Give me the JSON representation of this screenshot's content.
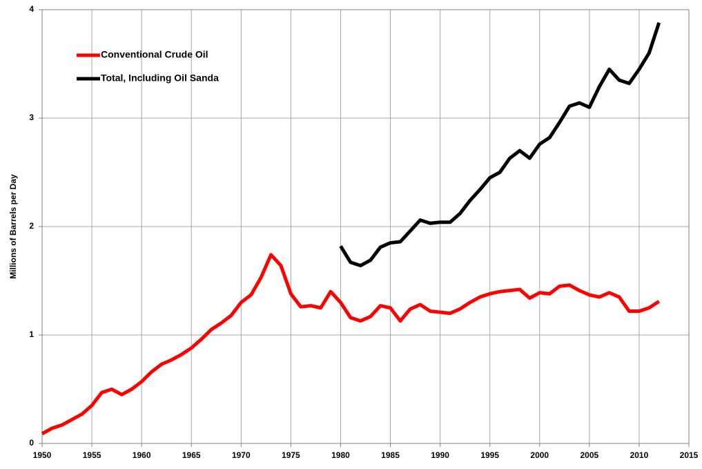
{
  "chart_data": {
    "type": "line",
    "y_label": "Millions of Barrels per Day",
    "x": [
      1950,
      1951,
      1952,
      1953,
      1954,
      1955,
      1956,
      1957,
      1958,
      1959,
      1960,
      1961,
      1962,
      1963,
      1964,
      1965,
      1966,
      1967,
      1968,
      1969,
      1970,
      1971,
      1972,
      1973,
      1974,
      1975,
      1976,
      1977,
      1978,
      1979,
      1980,
      1981,
      1982,
      1983,
      1984,
      1985,
      1986,
      1987,
      1988,
      1989,
      1990,
      1991,
      1992,
      1993,
      1994,
      1995,
      1996,
      1997,
      1998,
      1999,
      2000,
      2001,
      2002,
      2003,
      2004,
      2005,
      2006,
      2007,
      2008,
      2009,
      2010,
      2011,
      2012
    ],
    "series": [
      {
        "name": "Conventional Crude Oil",
        "color": "#ff0000",
        "values": [
          0.09,
          0.14,
          0.17,
          0.22,
          0.27,
          0.35,
          0.47,
          0.5,
          0.45,
          0.5,
          0.57,
          0.66,
          0.73,
          0.77,
          0.82,
          0.88,
          0.96,
          1.05,
          1.11,
          1.18,
          1.3,
          1.37,
          1.53,
          1.74,
          1.64,
          1.38,
          1.26,
          1.27,
          1.25,
          1.4,
          1.3,
          1.16,
          1.13,
          1.17,
          1.27,
          1.25,
          1.13,
          1.24,
          1.28,
          1.22,
          1.21,
          1.2,
          1.24,
          1.3,
          1.35,
          1.38,
          1.4,
          1.41,
          1.42,
          1.34,
          1.39,
          1.38,
          1.45,
          1.46,
          1.41,
          1.37,
          1.35,
          1.39,
          1.35,
          1.22,
          1.22,
          1.25,
          1.31
        ]
      },
      {
        "name": "Total, Including Oil Sanda",
        "color": "#000000",
        "values": [
          null,
          null,
          null,
          null,
          null,
          null,
          null,
          null,
          null,
          null,
          null,
          null,
          null,
          null,
          null,
          null,
          null,
          null,
          null,
          null,
          null,
          null,
          null,
          null,
          null,
          null,
          null,
          null,
          null,
          null,
          1.82,
          1.67,
          1.64,
          1.69,
          1.81,
          1.85,
          1.86,
          1.96,
          2.06,
          2.03,
          2.04,
          2.04,
          2.12,
          2.24,
          2.34,
          2.45,
          2.5,
          2.63,
          2.7,
          2.63,
          2.76,
          2.82,
          2.96,
          3.11,
          3.14,
          3.1,
          3.29,
          3.45,
          3.35,
          3.32,
          3.45,
          3.6,
          3.88
        ]
      }
    ],
    "xlim": [
      1950,
      2015
    ],
    "xticks": [
      1950,
      1955,
      1960,
      1965,
      1970,
      1975,
      1980,
      1985,
      1990,
      1995,
      2000,
      2005,
      2010,
      2015
    ],
    "ylim": [
      0,
      4
    ],
    "yticks": [
      0,
      1,
      2,
      3,
      4
    ],
    "grid": true,
    "legend": "upper left"
  }
}
